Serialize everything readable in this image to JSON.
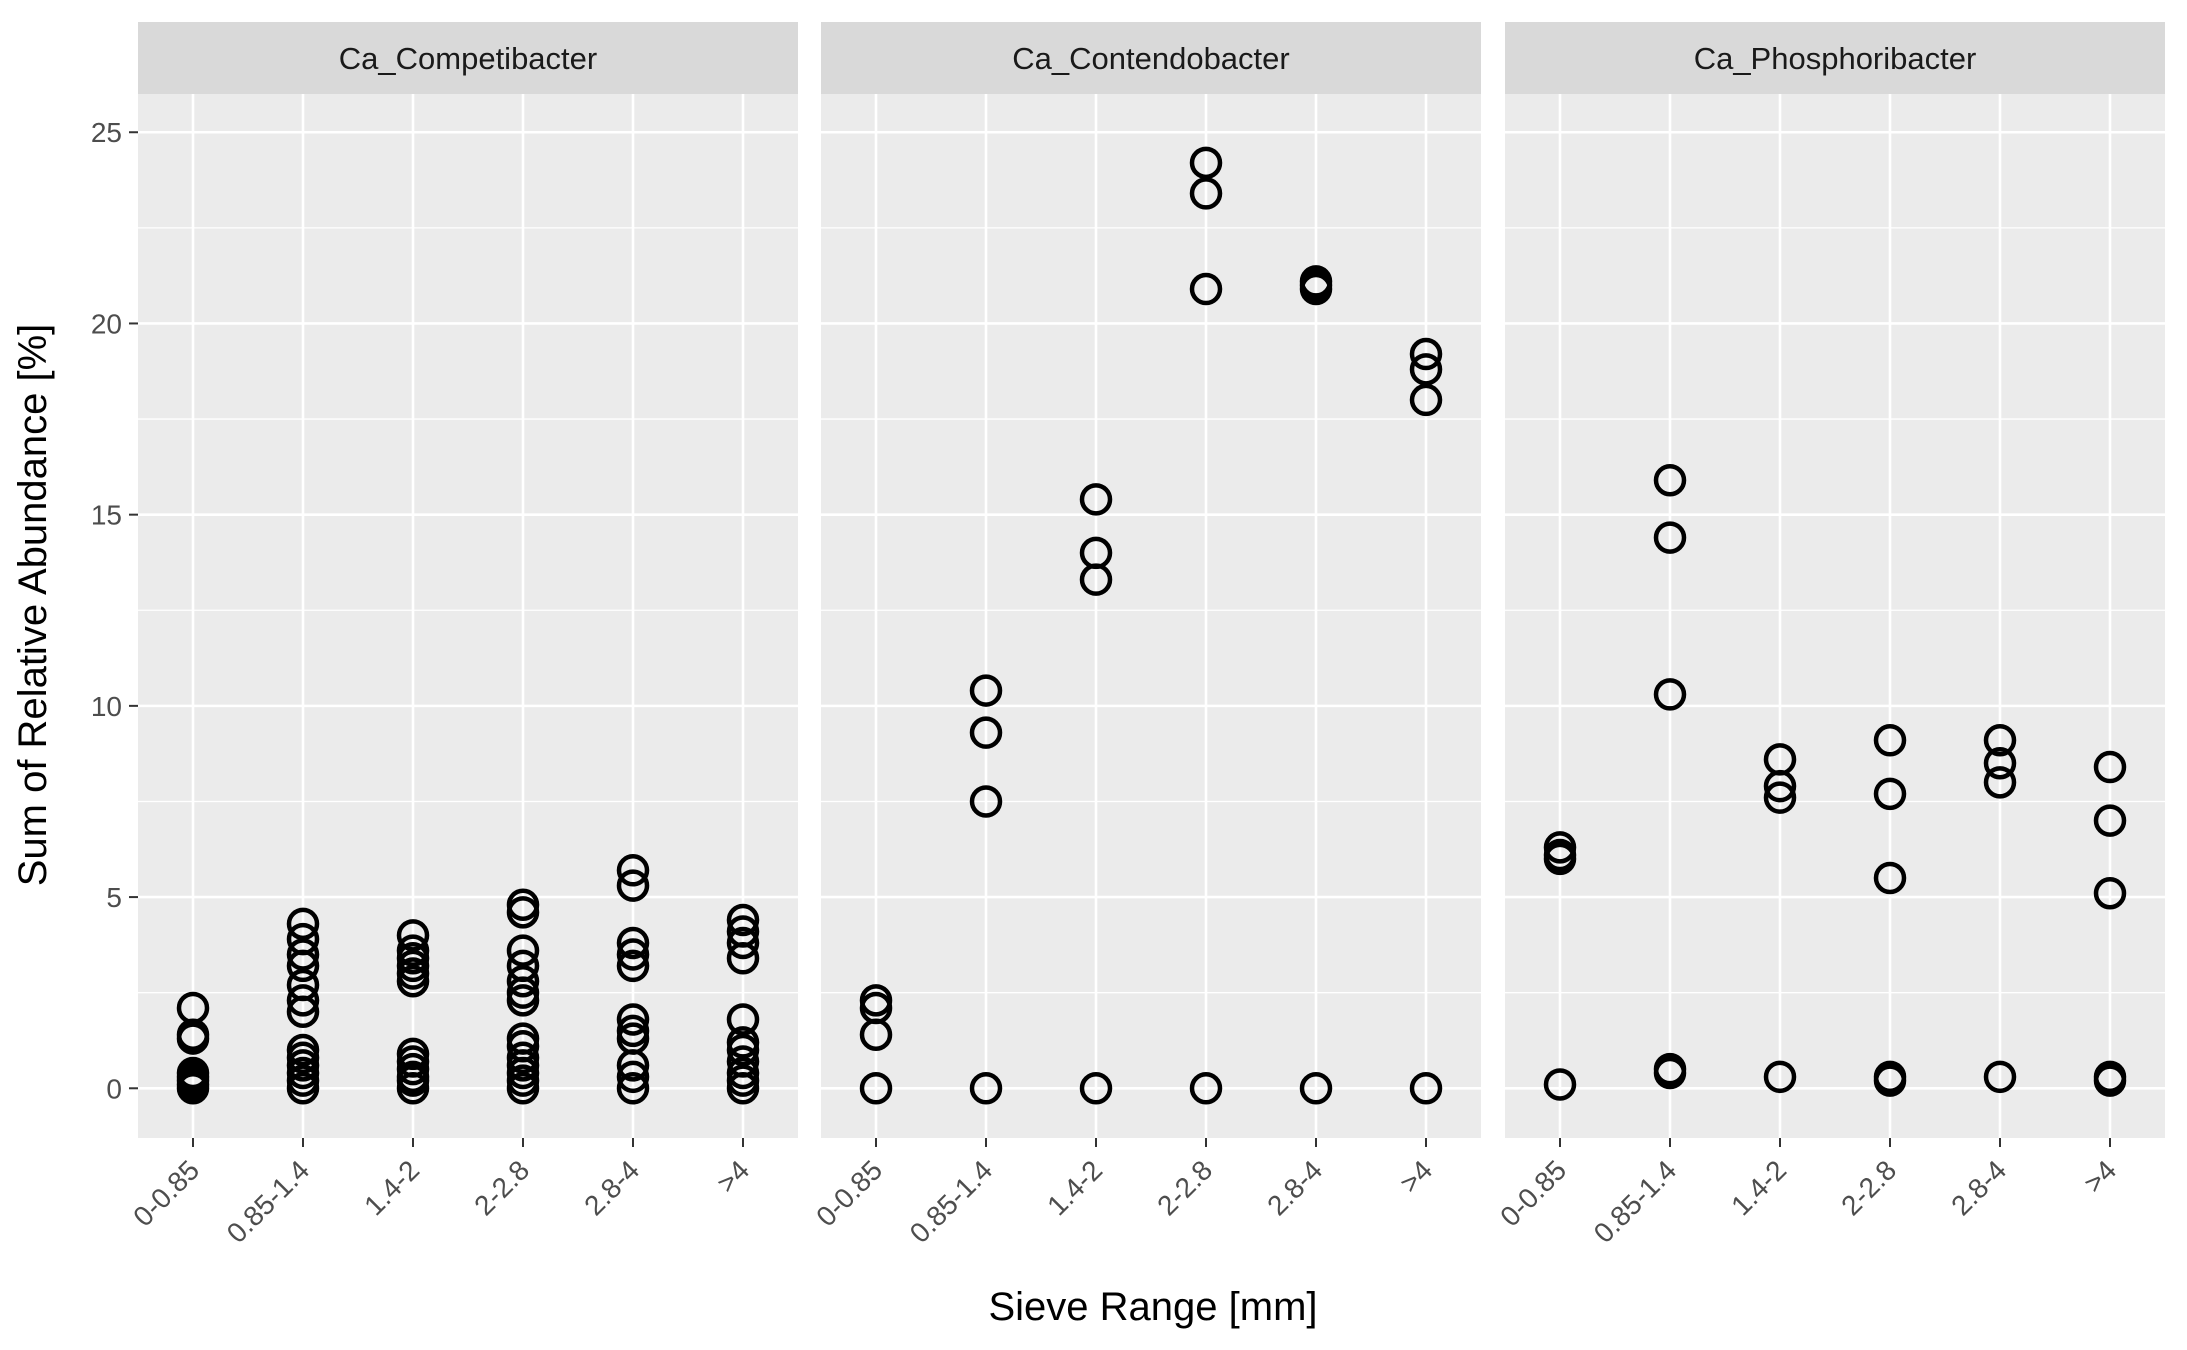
{
  "chart_data": {
    "type": "scatter",
    "facets": [
      "Ca_Competibacter",
      "Ca_Contendobacter",
      "Ca_Phosphoribacter"
    ],
    "categories": [
      "0-0.85",
      "0.85-1.4",
      "1.4-2",
      "2-2.8",
      "2.8-4",
      ">4"
    ],
    "xlabel": "Sieve Range [mm]",
    "ylabel": "Sum of Relative Abundance [%]",
    "ylim": [
      -1.3,
      26.0
    ],
    "yticks": [
      0,
      5,
      10,
      15,
      20,
      25
    ],
    "grid": true,
    "legend": "none",
    "panels": [
      {
        "facet": "Ca_Competibacter",
        "points": [
          [
            "0-0.85",
            2.1
          ],
          [
            "0-0.85",
            1.4
          ],
          [
            "0-0.85",
            1.3
          ],
          [
            "0-0.85",
            0.4
          ],
          [
            "0-0.85",
            0.3
          ],
          [
            "0-0.85",
            0.2
          ],
          [
            "0-0.85",
            0.1
          ],
          [
            "0-0.85",
            0.0
          ],
          [
            "0.85-1.4",
            4.3
          ],
          [
            "0.85-1.4",
            3.9
          ],
          [
            "0.85-1.4",
            3.5
          ],
          [
            "0.85-1.4",
            3.2
          ],
          [
            "0.85-1.4",
            2.7
          ],
          [
            "0.85-1.4",
            2.3
          ],
          [
            "0.85-1.4",
            2.0
          ],
          [
            "0.85-1.4",
            1.0
          ],
          [
            "0.85-1.4",
            0.8
          ],
          [
            "0.85-1.4",
            0.6
          ],
          [
            "0.85-1.4",
            0.4
          ],
          [
            "0.85-1.4",
            0.2
          ],
          [
            "0.85-1.4",
            0.0
          ],
          [
            "1.4-2",
            4.0
          ],
          [
            "1.4-2",
            3.6
          ],
          [
            "1.4-2",
            3.4
          ],
          [
            "1.4-2",
            3.2
          ],
          [
            "1.4-2",
            3.0
          ],
          [
            "1.4-2",
            2.8
          ],
          [
            "1.4-2",
            0.9
          ],
          [
            "1.4-2",
            0.7
          ],
          [
            "1.4-2",
            0.5
          ],
          [
            "1.4-2",
            0.3
          ],
          [
            "1.4-2",
            0.2
          ],
          [
            "1.4-2",
            0.0
          ],
          [
            "2-2.8",
            4.8
          ],
          [
            "2-2.8",
            4.6
          ],
          [
            "2-2.8",
            3.6
          ],
          [
            "2-2.8",
            3.2
          ],
          [
            "2-2.8",
            2.8
          ],
          [
            "2-2.8",
            2.5
          ],
          [
            "2-2.8",
            2.3
          ],
          [
            "2-2.8",
            1.3
          ],
          [
            "2-2.8",
            1.1
          ],
          [
            "2-2.8",
            0.8
          ],
          [
            "2-2.8",
            0.6
          ],
          [
            "2-2.8",
            0.4
          ],
          [
            "2-2.8",
            0.2
          ],
          [
            "2-2.8",
            0.0
          ],
          [
            "2.8-4",
            5.7
          ],
          [
            "2.8-4",
            5.3
          ],
          [
            "2.8-4",
            3.8
          ],
          [
            "2.8-4",
            3.5
          ],
          [
            "2.8-4",
            3.2
          ],
          [
            "2.8-4",
            1.8
          ],
          [
            "2.8-4",
            1.5
          ],
          [
            "2.8-4",
            1.3
          ],
          [
            "2.8-4",
            0.6
          ],
          [
            "2.8-4",
            0.3
          ],
          [
            "2.8-4",
            0.0
          ],
          [
            ">4",
            4.4
          ],
          [
            ">4",
            4.1
          ],
          [
            ">4",
            3.8
          ],
          [
            ">4",
            3.4
          ],
          [
            ">4",
            1.8
          ],
          [
            ">4",
            1.2
          ],
          [
            ">4",
            1.0
          ],
          [
            ">4",
            0.7
          ],
          [
            ">4",
            0.4
          ],
          [
            ">4",
            0.2
          ],
          [
            ">4",
            0.0
          ]
        ]
      },
      {
        "facet": "Ca_Contendobacter",
        "points": [
          [
            "0-0.85",
            2.3
          ],
          [
            "0-0.85",
            2.1
          ],
          [
            "0-0.85",
            1.4
          ],
          [
            "0-0.85",
            0.0
          ],
          [
            "0.85-1.4",
            10.4
          ],
          [
            "0.85-1.4",
            9.3
          ],
          [
            "0.85-1.4",
            7.5
          ],
          [
            "0.85-1.4",
            0.0
          ],
          [
            "1.4-2",
            15.4
          ],
          [
            "1.4-2",
            14.0
          ],
          [
            "1.4-2",
            13.3
          ],
          [
            "1.4-2",
            0.0
          ],
          [
            "2-2.8",
            24.2
          ],
          [
            "2-2.8",
            23.4
          ],
          [
            "2-2.8",
            20.9
          ],
          [
            "2-2.8",
            0.0
          ],
          [
            "2.8-4",
            21.1
          ],
          [
            "2.8-4",
            21.0
          ],
          [
            "2.8-4",
            20.9
          ],
          [
            "2.8-4",
            0.0
          ],
          [
            ">4",
            19.2
          ],
          [
            ">4",
            18.8
          ],
          [
            ">4",
            18.0
          ],
          [
            ">4",
            0.0
          ]
        ]
      },
      {
        "facet": "Ca_Phosphoribacter",
        "points": [
          [
            "0-0.85",
            6.3
          ],
          [
            "0-0.85",
            6.1
          ],
          [
            "0-0.85",
            6.0
          ],
          [
            "0-0.85",
            0.1
          ],
          [
            "0.85-1.4",
            15.9
          ],
          [
            "0.85-1.4",
            14.4
          ],
          [
            "0.85-1.4",
            10.3
          ],
          [
            "0.85-1.4",
            0.5
          ],
          [
            "0.85-1.4",
            0.4
          ],
          [
            "1.4-2",
            8.6
          ],
          [
            "1.4-2",
            7.9
          ],
          [
            "1.4-2",
            7.6
          ],
          [
            "1.4-2",
            0.3
          ],
          [
            "2-2.8",
            9.1
          ],
          [
            "2-2.8",
            7.7
          ],
          [
            "2-2.8",
            5.5
          ],
          [
            "2-2.8",
            0.3
          ],
          [
            "2-2.8",
            0.2
          ],
          [
            "2.8-4",
            9.1
          ],
          [
            "2.8-4",
            8.5
          ],
          [
            "2.8-4",
            8.0
          ],
          [
            "2.8-4",
            0.3
          ],
          [
            ">4",
            8.4
          ],
          [
            ">4",
            7.0
          ],
          [
            ">4",
            5.1
          ],
          [
            ">4",
            0.3
          ],
          [
            ">4",
            0.2
          ]
        ]
      }
    ]
  },
  "colors": {
    "panel_background": "#ebebeb",
    "strip_background": "#d9d9d9",
    "grid_major": "#ffffff",
    "point_stroke": "#000000"
  }
}
